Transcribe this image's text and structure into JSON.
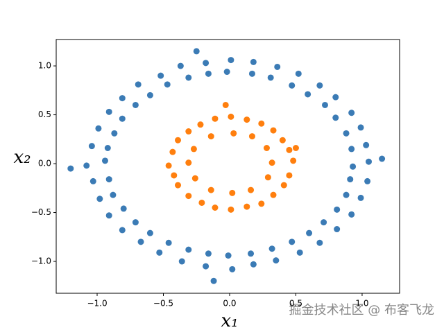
{
  "chart_data": {
    "type": "scatter",
    "xlabel": "x₁",
    "ylabel": "x₂",
    "watermark": "掘金技术社区 @ 布客飞龙",
    "xlim": [
      -1.309,
      1.283
    ],
    "ylim": [
      -1.326,
      1.27
    ],
    "xticks": [
      {
        "value": -1.0,
        "label": "−1.0"
      },
      {
        "value": -0.5,
        "label": "−0.5"
      },
      {
        "value": 0.0,
        "label": "0.0"
      },
      {
        "value": 0.5,
        "label": "0.5"
      },
      {
        "value": 1.0,
        "label": "1.0"
      }
    ],
    "yticks": [
      {
        "value": -1.0,
        "label": "−1.0"
      },
      {
        "value": -0.5,
        "label": "−0.5"
      },
      {
        "value": 0.0,
        "label": "0.0"
      },
      {
        "value": 0.5,
        "label": "0.5"
      },
      {
        "value": 1.0,
        "label": "1.0"
      }
    ],
    "series": [
      {
        "color": "#3b7bb5",
        "x": [
          1.05,
          0.93,
          1.03,
          0.92,
          0.99,
          0.88,
          0.92,
          0.8,
          0.8,
          0.72,
          0.68,
          0.59,
          0.52,
          0.47,
          0.36,
          0.31,
          0.18,
          0.17,
          0.01,
          -0.02,
          -0.18,
          -0.16,
          -0.37,
          -0.31,
          -0.52,
          -0.47,
          -0.69,
          -0.6,
          -0.81,
          -0.71,
          -0.91,
          -0.81,
          -0.99,
          -0.87,
          -1.04,
          -0.92,
          -1.08,
          -0.94,
          -1.03,
          -0.91,
          -0.98,
          -0.88,
          -0.91,
          -0.8,
          -0.81,
          -0.71,
          -0.67,
          -0.6,
          -0.53,
          -0.46,
          -0.36,
          -0.31,
          -0.18,
          -0.16,
          0.02,
          -0.01,
          0.18,
          0.16,
          0.35,
          0.32,
          0.53,
          0.47,
          0.68,
          0.6,
          0.81,
          0.71,
          0.92,
          0.81,
          0.99,
          0.88,
          1.04,
          0.91,
          -1.2,
          1.15,
          -0.12,
          -0.25
        ],
        "y": [
          0.02,
          -0.03,
          0.19,
          0.15,
          0.37,
          0.31,
          0.52,
          0.47,
          0.68,
          0.6,
          0.8,
          0.71,
          0.92,
          0.8,
          0.99,
          0.88,
          1.04,
          0.92,
          1.06,
          0.94,
          1.03,
          0.92,
          1.0,
          0.88,
          0.9,
          0.81,
          0.81,
          0.7,
          0.67,
          0.6,
          0.53,
          0.46,
          0.36,
          0.31,
          0.18,
          0.16,
          -0.02,
          0.03,
          -0.18,
          -0.16,
          -0.36,
          -0.32,
          -0.53,
          -0.46,
          -0.68,
          -0.6,
          -0.8,
          -0.71,
          -0.91,
          -0.81,
          -1.0,
          -0.88,
          -1.05,
          -0.92,
          -1.08,
          -0.94,
          -1.03,
          -0.92,
          -0.99,
          -0.87,
          -0.91,
          -0.8,
          -0.81,
          -0.71,
          -0.67,
          -0.6,
          -0.52,
          -0.47,
          -0.35,
          -0.32,
          -0.18,
          -0.16,
          -0.05,
          0.05,
          -1.2,
          1.15
        ]
      },
      {
        "color": "#ff7f0e",
        "x": [
          0.48,
          0.32,
          0.4,
          0.28,
          0.24,
          0.17,
          0.01,
          0.03,
          -0.22,
          -0.14,
          -0.39,
          -0.27,
          -0.46,
          -0.31,
          -0.39,
          -0.26,
          -0.21,
          -0.14,
          0.01,
          0.02,
          0.24,
          0.16,
          0.41,
          0.29,
          0.45,
          0.33,
          0.13,
          -0.11,
          -0.31,
          -0.43,
          -0.42,
          -0.31,
          -0.11,
          0.13,
          0.33,
          0.45,
          -0.03,
          0.5
        ],
        "y": [
          0.03,
          0.01,
          0.24,
          0.16,
          0.41,
          0.28,
          0.48,
          0.31,
          0.4,
          0.28,
          0.24,
          0.15,
          -0.02,
          0.01,
          -0.22,
          -0.15,
          -0.4,
          -0.27,
          -0.47,
          -0.3,
          -0.41,
          -0.27,
          -0.22,
          -0.14,
          0.14,
          0.34,
          0.45,
          0.46,
          0.33,
          0.12,
          -0.12,
          -0.33,
          -0.45,
          -0.44,
          -0.32,
          -0.12,
          0.6,
          0.16
        ]
      }
    ]
  }
}
